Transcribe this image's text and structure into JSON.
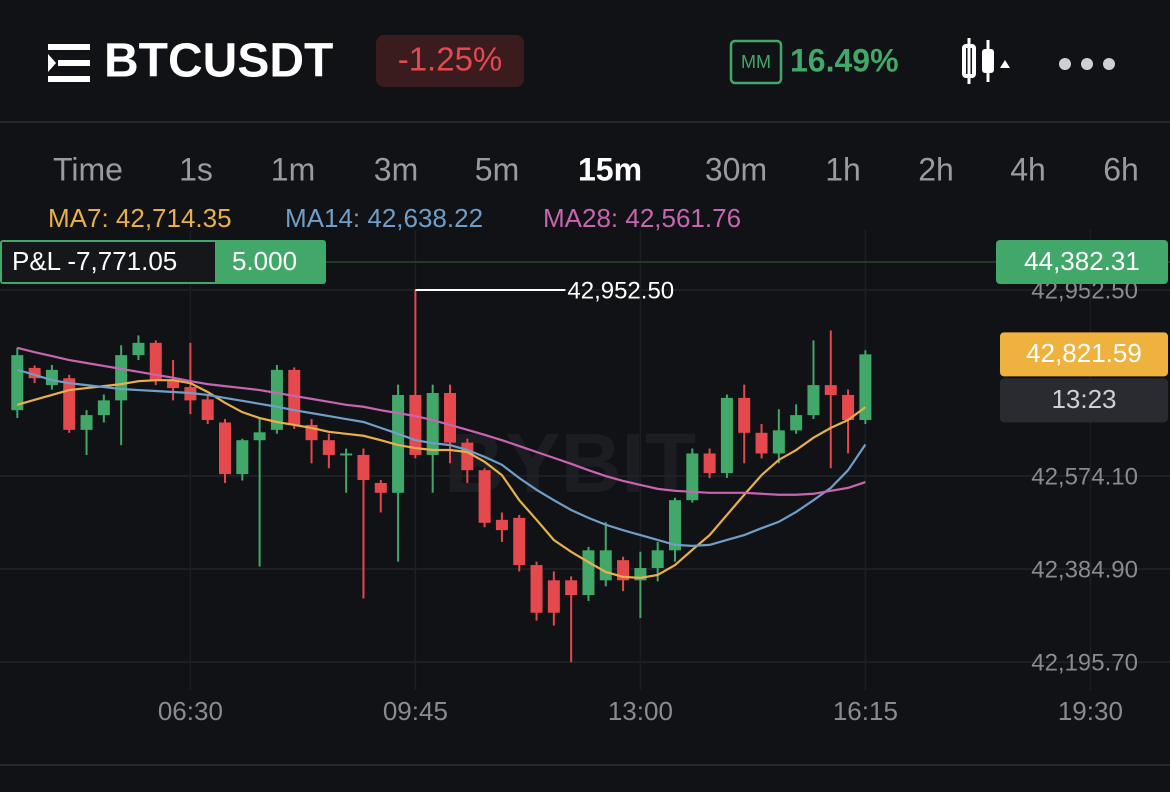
{
  "header": {
    "symbol": "BTCUSDT",
    "change": "-1.25%",
    "mm_badge": "MM",
    "mm_ratio": "16.49%"
  },
  "intervals": {
    "items": [
      "Time",
      "1s",
      "1m",
      "3m",
      "5m",
      "15m",
      "30m",
      "1h",
      "2h",
      "4h",
      "6h"
    ],
    "selected": "15m"
  },
  "chart_data": {
    "type": "candlestick",
    "watermark": "BYBIT",
    "x": [
      240,
      255,
      270,
      285,
      300,
      315,
      330,
      345,
      360,
      375,
      390,
      405,
      420,
      435,
      450,
      465,
      480,
      495,
      510,
      525,
      540,
      555,
      570,
      585,
      600,
      615,
      630,
      645,
      660,
      675,
      690,
      705,
      720,
      735,
      750,
      765,
      780,
      795,
      810,
      825,
      840,
      855,
      870,
      885,
      900,
      915,
      930,
      945,
      960,
      975
    ],
    "open": [
      42708,
      42794,
      42759,
      42773,
      42668,
      42698,
      42728,
      42820,
      42845,
      42769,
      42755,
      42730,
      42683,
      42578,
      42647,
      42668,
      42790,
      42678,
      42647,
      42617,
      42617,
      42560,
      42540,
      42739,
      42617,
      42743,
      42642,
      42586,
      42485,
      42489,
      42393,
      42362,
      42362,
      42332,
      42362,
      42403,
      42362,
      42387,
      42423,
      42525,
      42620,
      42580,
      42733,
      42662,
      42620,
      42667,
      42698,
      42759,
      42739,
      42688
    ],
    "high": [
      42835,
      42799,
      42800,
      42780,
      42708,
      42740,
      42840,
      42860,
      42850,
      42810,
      42845,
      42740,
      42690,
      42650,
      42690,
      42800,
      42795,
      42690,
      42660,
      42630,
      42630,
      42566,
      42760,
      42952.5,
      42760,
      42760,
      42650,
      42590,
      42500,
      42495,
      42400,
      42380,
      42370,
      42430,
      42480,
      42410,
      42420,
      42440,
      42530,
      42630,
      42630,
      42740,
      42760,
      42680,
      42710,
      42720,
      42850,
      42870,
      42750,
      42830
    ],
    "low": [
      42692,
      42763,
      42750,
      42662,
      42617,
      42683,
      42637,
      42810,
      42759,
      42728,
      42700,
      42680,
      42560,
      42565,
      42390,
      42660,
      42670,
      42600,
      42590,
      42540,
      42325,
      42500,
      42400,
      42610,
      42540,
      42600,
      42560,
      42470,
      42440,
      42380,
      42280,
      42270,
      42195.7,
      42320,
      42350,
      42340,
      42285,
      42360,
      42400,
      42520,
      42570,
      42570,
      42600,
      42610,
      42600,
      42660,
      42690,
      42590,
      42620,
      42680
    ],
    "close": [
      42820,
      42773,
      42790,
      42668,
      42698,
      42728,
      42820,
      42845,
      42769,
      42753,
      42728,
      42688,
      42578,
      42647,
      42663,
      42790,
      42678,
      42647,
      42617,
      42620,
      42566,
      42540,
      42739,
      42617,
      42743,
      42642,
      42586,
      42479,
      42464,
      42393,
      42296,
      42296,
      42332,
      42423,
      42423,
      42362,
      42387,
      42423,
      42525,
      42620,
      42580,
      42733,
      42662,
      42620,
      42667,
      42698,
      42759,
      42739,
      42688,
      42821.59
    ],
    "up_color": "#41a86a",
    "down_color": "#e5484d",
    "series": [
      {
        "name": "MA7: 42,714.35",
        "color": "#e8b04a",
        "values": [
          42719,
          42729,
          42739,
          42749,
          42753,
          42757,
          42761,
          42767,
          42769,
          42769,
          42763,
          42745,
          42723,
          42704,
          42692,
          42684,
          42678,
          42672,
          42664,
          42660,
          42656,
          42647,
          42637,
          42631,
          42627,
          42627,
          42623,
          42603,
          42576,
          42525,
          42485,
          42444,
          42420,
          42399,
          42379,
          42369,
          42367,
          42373,
          42393,
          42424,
          42454,
          42495,
          42536,
          42576,
          42607,
          42627,
          42652,
          42672,
          42688,
          42714.35
        ]
      },
      {
        "name": "MA14: 42,638.22",
        "color": "#6f9fc8",
        "values": [
          42790,
          42780,
          42769,
          42763,
          42759,
          42755,
          42751,
          42749,
          42747,
          42745,
          42743,
          42739,
          42733,
          42727,
          42721,
          42715,
          42708,
          42702,
          42696,
          42690,
          42684,
          42672,
          42660,
          42647,
          42641,
          42637,
          42627,
          42613,
          42597,
          42570,
          42546,
          42525,
          42505,
          42489,
          42475,
          42464,
          42454,
          42444,
          42434,
          42432,
          42434,
          42444,
          42454,
          42468,
          42481,
          42501,
          42525,
          42550,
          42586,
          42638.22
        ]
      },
      {
        "name": "MA28: 42,561.76",
        "color": "#c765b0",
        "values": [
          42835,
          42826,
          42818,
          42810,
          42804,
          42798,
          42792,
          42786,
          42780,
          42774,
          42767,
          42761,
          42757,
          42753,
          42749,
          42743,
          42737,
          42731,
          42725,
          42719,
          42715,
          42708,
          42702,
          42696,
          42688,
          42678,
          42668,
          42658,
          42647,
          42635,
          42623,
          42611,
          42599,
          42586,
          42574,
          42564,
          42556,
          42548,
          42544,
          42542,
          42540,
          42540,
          42540,
          42538,
          42536,
          42536,
          42538,
          42544,
          42550,
          42561.76
        ]
      }
    ],
    "xlim": [
      225,
      1239
    ],
    "xticks": [
      {
        "value": 390,
        "label": "06:30"
      },
      {
        "value": 585,
        "label": "09:45"
      },
      {
        "value": 780,
        "label": "13:00"
      },
      {
        "value": 975,
        "label": "16:15"
      },
      {
        "value": 1170,
        "label": "19:30"
      }
    ],
    "ylim": [
      42138.9,
      43074.5
    ],
    "yticks": [
      {
        "value": 42952.5,
        "label": "42,952.50"
      },
      {
        "value": 42574.1,
        "label": "42,574.10"
      },
      {
        "value": 42384.9,
        "label": "42,384.90"
      },
      {
        "value": 42195.7,
        "label": "42,195.70"
      }
    ],
    "grid": true,
    "high_marker": "42,952.50",
    "position": {
      "pnl": "P&L -7,771.05",
      "size": "5.000",
      "entry_label": "44,382.31"
    },
    "last_price": 42821.59,
    "last_price_label": "42,821.59",
    "countdown": "13:23"
  }
}
